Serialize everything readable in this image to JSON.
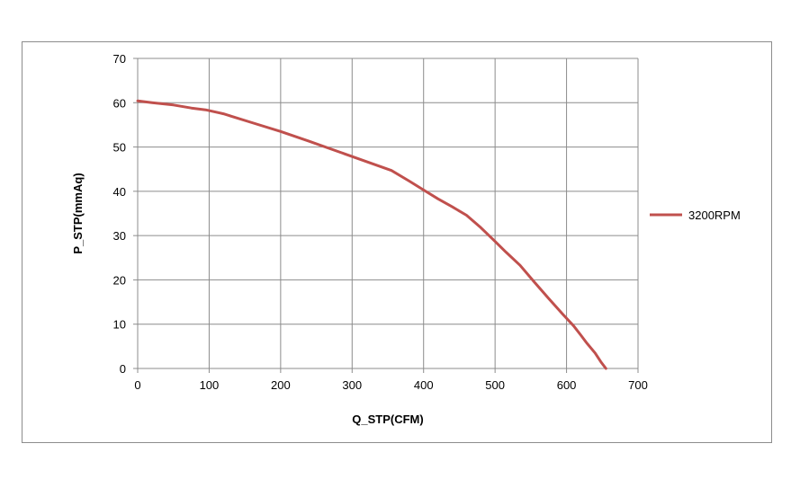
{
  "chart_data": {
    "type": "line",
    "xlabel": "Q_STP(CFM)",
    "ylabel": "P_STP(mmAq)",
    "xlim": [
      0,
      700
    ],
    "ylim": [
      0,
      70
    ],
    "xticks": [
      0,
      100,
      200,
      300,
      400,
      500,
      600,
      700
    ],
    "yticks": [
      0,
      10,
      20,
      30,
      40,
      50,
      60,
      70
    ],
    "grid": true,
    "legend_position": "right",
    "series": [
      {
        "name": "3200RPM",
        "color": "#c0504d",
        "points": [
          [
            0,
            60.4
          ],
          [
            20,
            60.0
          ],
          [
            50,
            59.5
          ],
          [
            75,
            58.8
          ],
          [
            95,
            58.4
          ],
          [
            120,
            57.5
          ],
          [
            160,
            55.5
          ],
          [
            200,
            53.5
          ],
          [
            240,
            51.3
          ],
          [
            280,
            49.0
          ],
          [
            320,
            46.7
          ],
          [
            355,
            44.7
          ],
          [
            380,
            42.3
          ],
          [
            400,
            40.3
          ],
          [
            420,
            38.3
          ],
          [
            440,
            36.5
          ],
          [
            460,
            34.6
          ],
          [
            480,
            31.8
          ],
          [
            500,
            28.7
          ],
          [
            515,
            26.3
          ],
          [
            535,
            23.3
          ],
          [
            555,
            19.5
          ],
          [
            575,
            15.8
          ],
          [
            595,
            12.2
          ],
          [
            610,
            9.6
          ],
          [
            620,
            7.5
          ],
          [
            628,
            5.8
          ],
          [
            640,
            3.5
          ],
          [
            648,
            1.5
          ],
          [
            655,
            0
          ]
        ]
      }
    ]
  }
}
